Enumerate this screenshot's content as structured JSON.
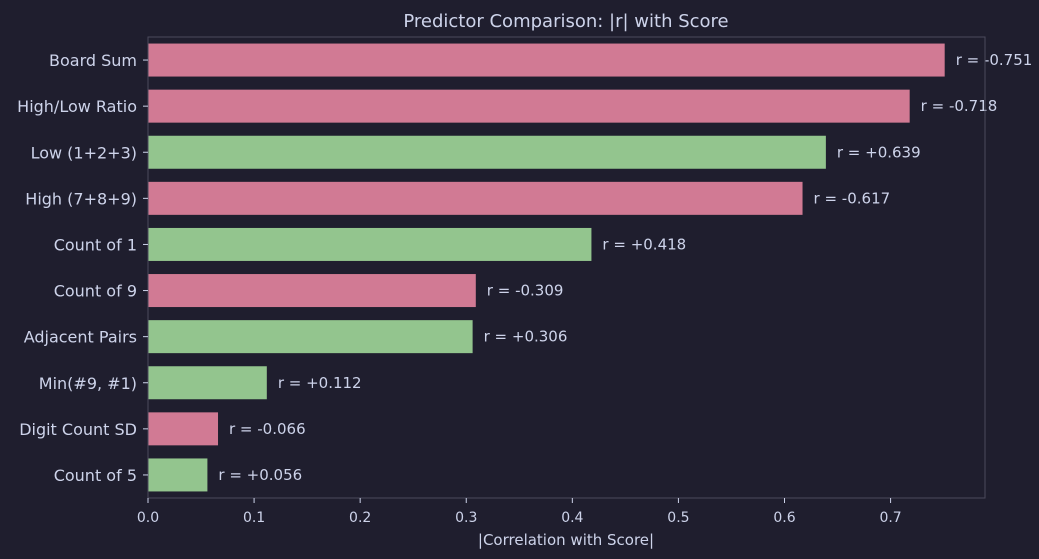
{
  "colors": {
    "background": "#1f1e2e",
    "positive": "#93c58e",
    "negative": "#d17a94",
    "text": "#cdd3ea",
    "frame": "#4b4a5c"
  },
  "chart_data": {
    "type": "bar",
    "orientation": "horizontal",
    "title": "Predictor Comparison: |r| with Score",
    "xlabel": "|Correlation with Score|",
    "ylabel": "",
    "xlim": [
      0,
      0.789
    ],
    "xticks": [
      "0.0",
      "0.1",
      "0.2",
      "0.3",
      "0.4",
      "0.5",
      "0.6",
      "0.7"
    ],
    "grid": false,
    "categories": [
      "Board Sum",
      "High/Low Ratio",
      "Low (1+2+3)",
      "High (7+8+9)",
      "Count of 1",
      "Count of 9",
      "Adjacent Pairs",
      "Min(#9, #1)",
      "Digit Count SD",
      "Count of 5"
    ],
    "values": [
      0.751,
      0.718,
      0.639,
      0.617,
      0.418,
      0.309,
      0.306,
      0.112,
      0.066,
      0.056
    ],
    "signs": [
      "negative",
      "negative",
      "positive",
      "negative",
      "positive",
      "negative",
      "positive",
      "positive",
      "negative",
      "positive"
    ],
    "data_labels": [
      "r = -0.751",
      "r = -0.718",
      "r = +0.639",
      "r = -0.617",
      "r = +0.418",
      "r = -0.309",
      "r = +0.306",
      "r = +0.112",
      "r = -0.066",
      "r = +0.056"
    ]
  }
}
